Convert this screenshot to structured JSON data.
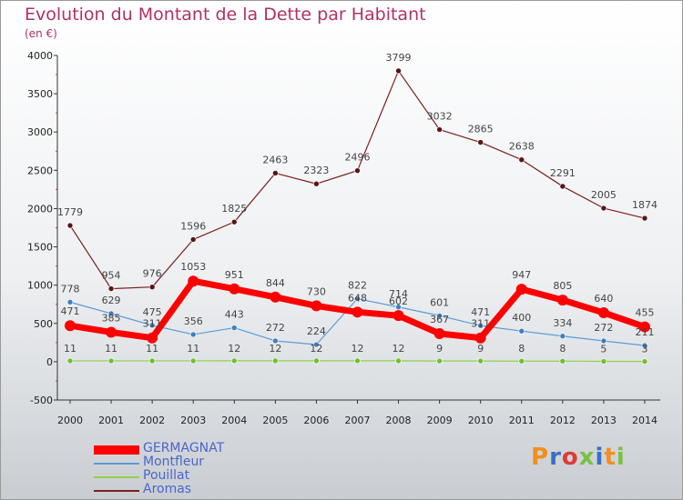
{
  "title": "Evolution du Montant de la Dette par Habitant",
  "unit": "(en €)",
  "logo_text": "Proxiti",
  "chart_data": {
    "type": "line",
    "categories": [
      "2000",
      "2001",
      "2002",
      "2003",
      "2004",
      "2005",
      "2006",
      "2007",
      "2008",
      "2009",
      "2010",
      "2011",
      "2012",
      "2013",
      "2014"
    ],
    "ylim": [
      -500,
      4000
    ],
    "yticks": [
      -500,
      0,
      500,
      1000,
      1500,
      2000,
      2500,
      3000,
      3500,
      4000
    ],
    "ytick_labels": [
      "-500",
      "0",
      "500",
      "1000",
      "1500",
      "2000",
      "2500",
      "3000",
      "3500",
      "4000"
    ],
    "grid": false,
    "legend_position": "bottom-left",
    "series": [
      {
        "name": "GERMAGNAT",
        "color": "#ff0000",
        "values": [
          471,
          385,
          311,
          1053,
          951,
          844,
          730,
          648,
          602,
          367,
          311,
          947,
          805,
          640,
          455
        ],
        "labels": [
          "471",
          "385",
          "311",
          "1053",
          "951",
          "844",
          "730",
          "648",
          "602",
          "367",
          "311",
          "947",
          "805",
          "640",
          "455"
        ]
      },
      {
        "name": "Montfleur",
        "color": "#5b9bd5",
        "values": [
          778,
          629,
          475,
          356,
          443,
          272,
          224,
          822,
          714,
          601,
          471,
          400,
          334,
          272,
          211
        ],
        "labels": [
          "778",
          "629",
          "475",
          "356",
          "443",
          "272",
          "224",
          "822",
          "714",
          "601",
          "471",
          "400",
          "334",
          "272",
          "211"
        ]
      },
      {
        "name": "Pouillat",
        "color": "#8ed14f",
        "values": [
          11,
          11,
          11,
          11,
          12,
          12,
          12,
          12,
          12,
          9,
          9,
          8,
          8,
          5,
          3
        ],
        "labels": [
          "11",
          "11",
          "11",
          "11",
          "12",
          "12",
          "12",
          "12",
          "12",
          "9",
          "9",
          "8",
          "8",
          "5",
          "3"
        ]
      },
      {
        "name": "Aromas",
        "color": "#7a1f1f",
        "values": [
          1779,
          954,
          976,
          1596,
          1825,
          2463,
          2323,
          2496,
          3799,
          3032,
          2865,
          2638,
          2291,
          2005,
          1874
        ],
        "labels": [
          "1779",
          "954",
          "976",
          "1596",
          "1825",
          "2463",
          "2323",
          "2496",
          "3799",
          "3032",
          "2865",
          "2638",
          "2291",
          "2005",
          "1874"
        ]
      }
    ]
  }
}
